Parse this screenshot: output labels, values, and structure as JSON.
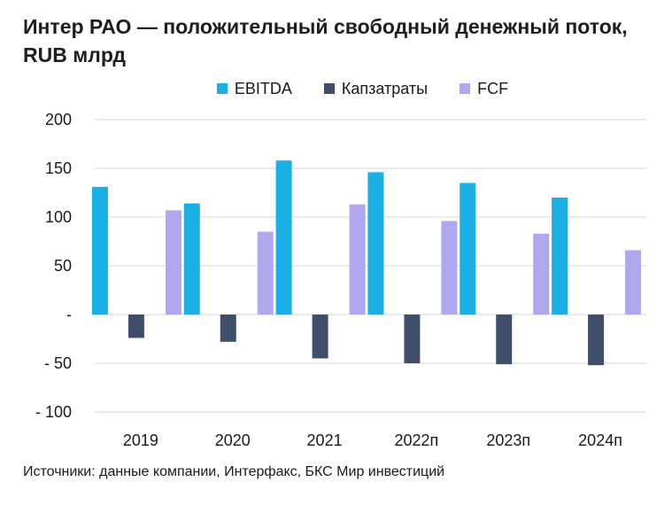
{
  "title": "Интер РАО — положительный свободный денежный поток, RUB млрд",
  "source": "Источники: данные компании, Интерфакс, БКС Мир инвестиций",
  "colors": {
    "EBITDA": "#1ab0e6",
    "Капзатраты": "#3f4e6b",
    "FCF": "#b0a8ee",
    "grid": "#d6d6d6"
  },
  "chart_data": {
    "type": "bar",
    "title": "Интер РАО — положительный свободный денежный поток, RUB млрд",
    "categories": [
      "2019",
      "2020",
      "2021",
      "2022п",
      "2023п",
      "2024п"
    ],
    "series": [
      {
        "name": "EBITDA",
        "values": [
          131,
          114,
          158,
          146,
          135,
          120
        ]
      },
      {
        "name": "Капзатраты",
        "values": [
          -24,
          -28,
          -45,
          -50,
          -51,
          -52
        ]
      },
      {
        "name": "FCF",
        "values": [
          107,
          85,
          113,
          96,
          83,
          66
        ]
      }
    ],
    "yticks": [
      "200",
      "150",
      "100",
      "50",
      "-",
      "- 50",
      "- 100"
    ],
    "ytick_values": [
      200,
      150,
      100,
      50,
      0,
      -50,
      -100
    ],
    "ylim": [
      -100,
      200
    ],
    "grid": true,
    "legend_position": "top-center",
    "xlabel": "",
    "ylabel": ""
  }
}
